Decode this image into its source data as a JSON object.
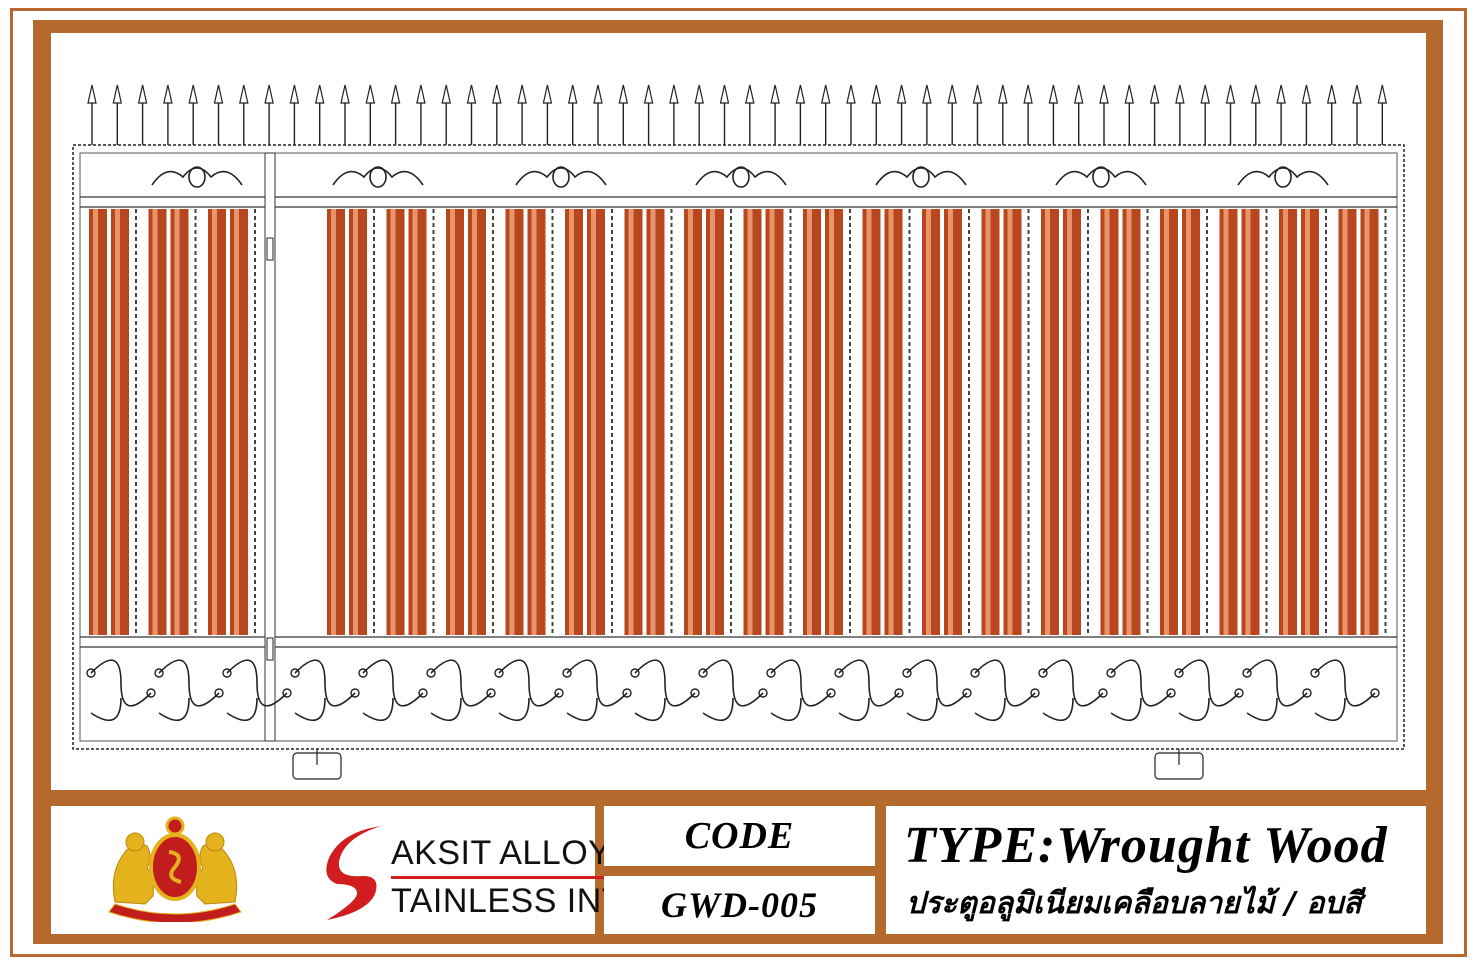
{
  "brand": {
    "line1": "AKSIT ALLOY",
    "line2": "TAINLESS INTER",
    "crest_text_top": "SAKSIT ALLOY",
    "crest_text_bottom": "STAINLESS INTER",
    "accent_color": "#d11d1d",
    "crest_gold": "#e4b21c"
  },
  "code": {
    "label": "CODE",
    "value": "GWD-005"
  },
  "type": {
    "title": "TYPE:Wrought  Wood",
    "subtitle": "ประตูอลูมิเนียมเคลือบลายไม้ / อบสี"
  },
  "colors": {
    "frame": "#b36a2c",
    "wood_dark": "#b8461e",
    "wood_light": "#e8956a"
  },
  "icons": [
    "crest-logo-icon",
    "s-swoosh-icon",
    "spear-finial-icon",
    "scroll-ornament-icon",
    "hinge-icon",
    "wheel-icon"
  ]
}
